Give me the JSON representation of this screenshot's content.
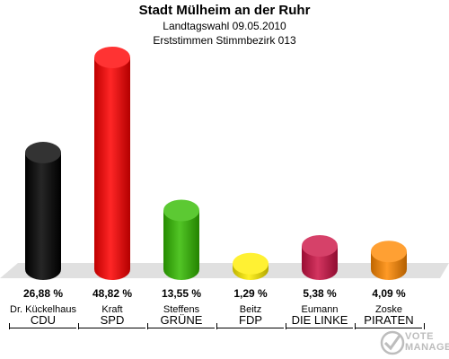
{
  "chart_data": {
    "type": "bar",
    "title": "Stadt Mülheim an der Ruhr",
    "subtitle": [
      "Landtagswahl 09.05.2010",
      "Erststimmen Stimmbezirk 013"
    ],
    "categories": [
      "CDU",
      "SPD",
      "GRÜNE",
      "FDP",
      "DIE LINKE",
      "PIRATEN"
    ],
    "candidates": [
      "Dr. Kückelhaus",
      "Kraft",
      "Steffens",
      "Beitz",
      "Eumann",
      "Zoske"
    ],
    "values": [
      26.88,
      48.82,
      13.55,
      1.29,
      5.38,
      4.09
    ],
    "value_labels": [
      "26,88 %",
      "48,82 %",
      "13,55 %",
      "1,29 %",
      "5,38 %",
      "4,09 %"
    ],
    "colors": [
      "#000000",
      "#ff0000",
      "#33bb00",
      "#ffee00",
      "#cc1144",
      "#ff8800"
    ],
    "ylim": [
      0,
      50
    ],
    "grid": false,
    "legend": "none"
  },
  "watermark": "VOTE MANAGER"
}
